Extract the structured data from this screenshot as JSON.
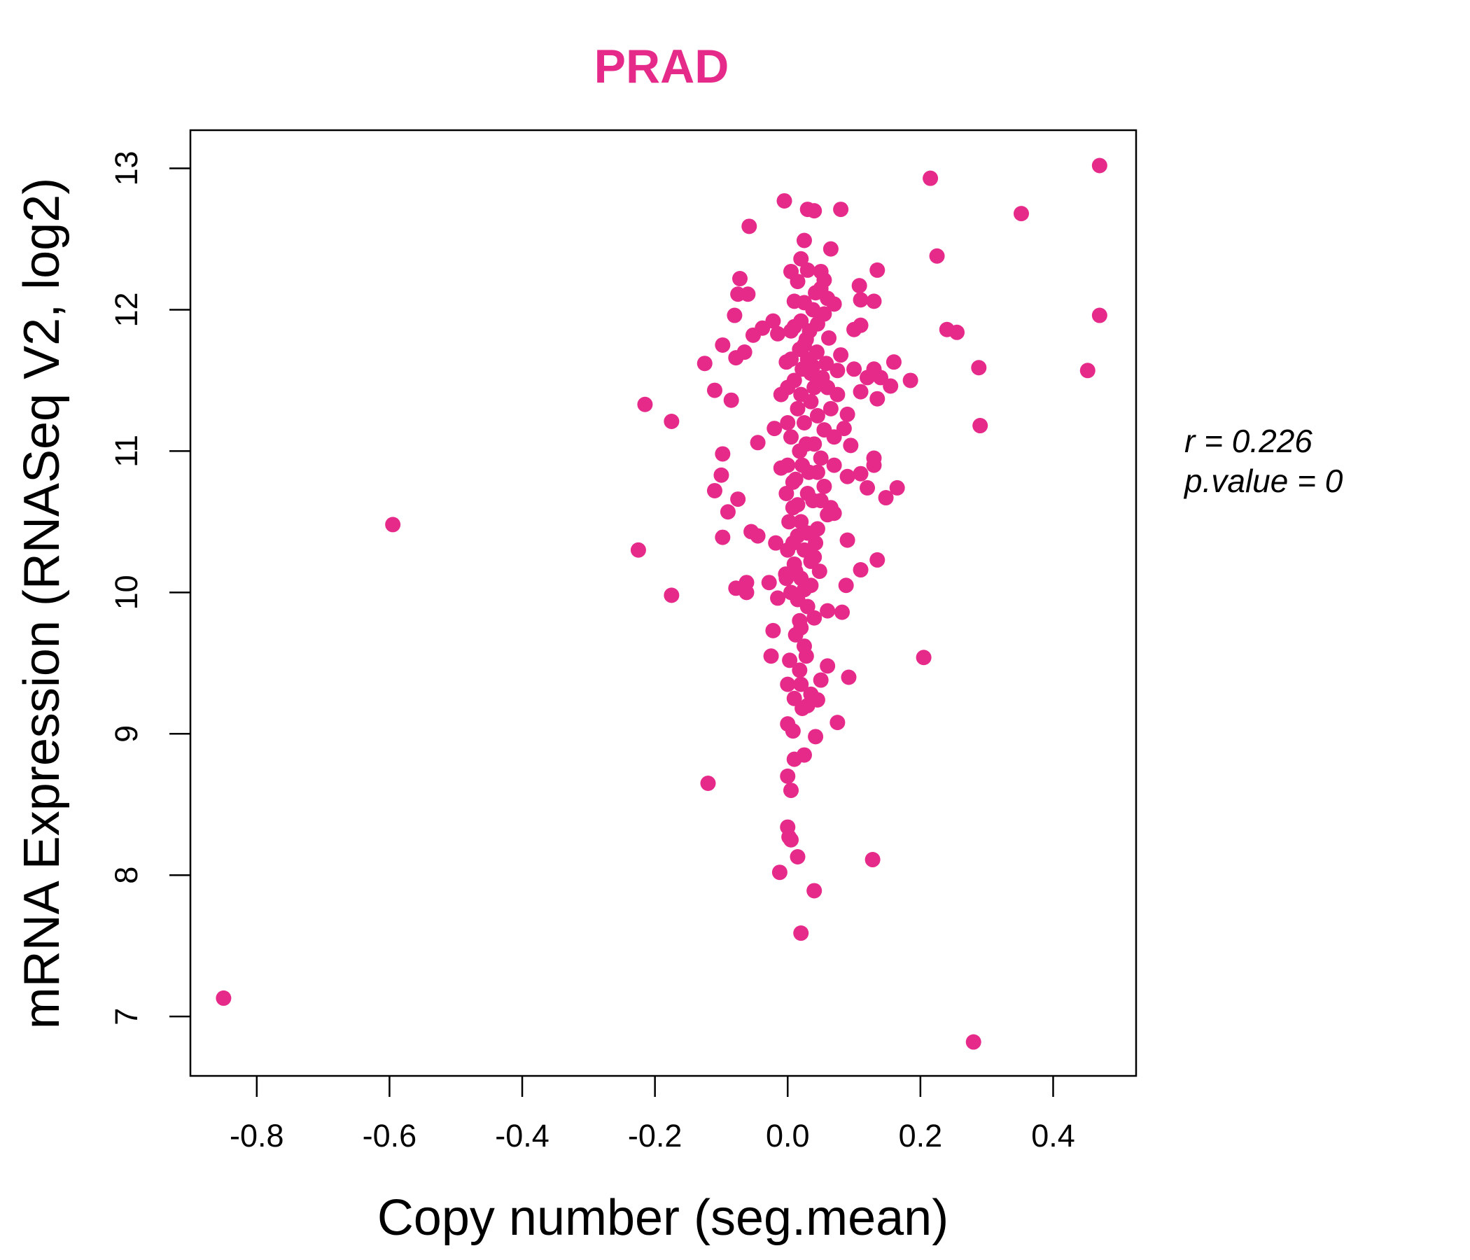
{
  "chart_data": {
    "type": "scatter",
    "title": "PRAD",
    "xlabel": "Copy number (seg.mean)",
    "ylabel": "mRNA Expression (RNASeq V2, log2)",
    "xlim": [
      -0.9,
      0.525
    ],
    "ylim": [
      6.58,
      13.27
    ],
    "x_ticks": [
      "-0.8",
      "-0.6",
      "-0.4",
      "-0.2",
      "0.0",
      "0.2",
      "0.4"
    ],
    "y_ticks": [
      "7",
      "8",
      "9",
      "10",
      "11",
      "12",
      "13"
    ],
    "grid": false,
    "legend": "none",
    "annotation": {
      "r_line": "r = 0.226",
      "p_line": "p.value = 0"
    },
    "colors": {
      "points": "#E62A8A",
      "title": "#E62A8A",
      "axes": "#000000"
    },
    "points": [
      [
        -0.85,
        7.13
      ],
      [
        -0.595,
        10.48
      ],
      [
        -0.225,
        10.3
      ],
      [
        -0.215,
        11.33
      ],
      [
        -0.175,
        11.21
      ],
      [
        -0.175,
        9.98
      ],
      [
        -0.12,
        8.65
      ],
      [
        -0.125,
        11.62
      ],
      [
        -0.11,
        11.43
      ],
      [
        -0.11,
        10.72
      ],
      [
        -0.1,
        10.83
      ],
      [
        -0.098,
        10.98
      ],
      [
        -0.098,
        11.75
      ],
      [
        -0.098,
        10.39
      ],
      [
        -0.09,
        10.57
      ],
      [
        -0.085,
        11.36
      ],
      [
        -0.08,
        11.96
      ],
      [
        -0.078,
        11.66
      ],
      [
        -0.075,
        12.11
      ],
      [
        -0.072,
        12.22
      ],
      [
        -0.075,
        10.66
      ],
      [
        -0.078,
        10.03
      ],
      [
        -0.065,
        11.7
      ],
      [
        -0.062,
        10.07
      ],
      [
        -0.062,
        10.0
      ],
      [
        -0.06,
        12.11
      ],
      [
        -0.058,
        12.59
      ],
      [
        -0.055,
        10.43
      ],
      [
        -0.052,
        11.82
      ],
      [
        -0.045,
        11.06
      ],
      [
        -0.045,
        10.4
      ],
      [
        -0.038,
        11.87
      ],
      [
        -0.028,
        10.07
      ],
      [
        -0.025,
        9.55
      ],
      [
        -0.022,
        11.92
      ],
      [
        -0.02,
        11.16
      ],
      [
        -0.022,
        9.73
      ],
      [
        -0.018,
        10.35
      ],
      [
        -0.015,
        11.83
      ],
      [
        -0.012,
        8.02
      ],
      [
        -0.015,
        9.96
      ],
      [
        -0.01,
        10.88
      ],
      [
        -0.01,
        11.4
      ],
      [
        -0.005,
        12.77
      ],
      [
        -0.003,
        10.13
      ],
      [
        -0.002,
        11.63
      ],
      [
        0.0,
        8.7
      ],
      [
        0.0,
        8.34
      ],
      [
        0.002,
        8.27
      ],
      [
        0.005,
        8.25
      ],
      [
        0.0,
        9.07
      ],
      [
        0.0,
        9.35
      ],
      [
        0.003,
        9.52
      ],
      [
        0.005,
        8.6
      ],
      [
        0.008,
        9.02
      ],
      [
        0.01,
        8.82
      ],
      [
        0.015,
        8.13
      ],
      [
        0.02,
        7.59
      ],
      [
        0.025,
        8.85
      ],
      [
        0.03,
        9.2
      ],
      [
        0.04,
        7.89
      ],
      [
        0.042,
        8.98
      ],
      [
        0.045,
        9.24
      ],
      [
        0.05,
        9.38
      ],
      [
        0.06,
        9.48
      ],
      [
        0.075,
        9.08
      ],
      [
        0.092,
        9.4
      ],
      [
        0.082,
        9.86
      ],
      [
        0.06,
        9.87
      ],
      [
        0.088,
        10.05
      ],
      [
        0.11,
        10.16
      ],
      [
        0.135,
        10.23
      ],
      [
        0.09,
        10.37
      ],
      [
        0.07,
        10.56
      ],
      [
        0.12,
        10.74
      ],
      [
        0.148,
        10.67
      ],
      [
        0.165,
        10.74
      ],
      [
        0.13,
        10.9
      ],
      [
        0.13,
        10.95
      ],
      [
        0.11,
        10.84
      ],
      [
        0.09,
        10.82
      ],
      [
        0.095,
        11.04
      ],
      [
        0.085,
        11.16
      ],
      [
        0.09,
        11.26
      ],
      [
        0.135,
        11.37
      ],
      [
        0.11,
        11.42
      ],
      [
        0.12,
        11.52
      ],
      [
        0.14,
        11.52
      ],
      [
        0.13,
        11.58
      ],
      [
        0.155,
        11.46
      ],
      [
        0.16,
        11.63
      ],
      [
        0.185,
        11.5
      ],
      [
        0.1,
        11.58
      ],
      [
        0.08,
        11.68
      ],
      [
        0.075,
        11.57
      ],
      [
        0.1,
        11.86
      ],
      [
        0.11,
        11.89
      ],
      [
        0.11,
        12.07
      ],
      [
        0.13,
        12.06
      ],
      [
        0.108,
        12.17
      ],
      [
        0.135,
        12.28
      ],
      [
        0.065,
        12.43
      ],
      [
        0.08,
        12.71
      ],
      [
        0.025,
        12.49
      ],
      [
        0.03,
        12.71
      ],
      [
        0.04,
        12.7
      ],
      [
        0.05,
        12.27
      ],
      [
        0.055,
        12.21
      ],
      [
        0.06,
        12.08
      ],
      [
        0.05,
        12.15
      ],
      [
        0.07,
        12.04
      ],
      [
        0.055,
        11.97
      ],
      [
        0.03,
        12.28
      ],
      [
        0.02,
        12.36
      ],
      [
        0.005,
        12.27
      ],
      [
        0.015,
        12.2
      ],
      [
        0.01,
        12.06
      ],
      [
        0.02,
        11.92
      ],
      [
        0.005,
        11.85
      ],
      [
        0.028,
        11.79
      ],
      [
        0.215,
        12.93
      ],
      [
        0.225,
        12.38
      ],
      [
        0.24,
        11.86
      ],
      [
        0.255,
        11.84
      ],
      [
        0.288,
        11.59
      ],
      [
        0.29,
        11.18
      ],
      [
        0.352,
        12.68
      ],
      [
        0.47,
        13.02
      ],
      [
        0.47,
        11.96
      ],
      [
        0.452,
        11.57
      ],
      [
        0.205,
        9.54
      ],
      [
        0.128,
        8.11
      ],
      [
        0.28,
        6.82
      ],
      [
        0.01,
        11.5
      ],
      [
        0.02,
        11.4
      ],
      [
        0.015,
        11.3
      ],
      [
        0.025,
        11.2
      ],
      [
        0.005,
        11.1
      ],
      [
        0.018,
        11.0
      ],
      [
        0.022,
        10.9
      ],
      [
        0.012,
        10.8
      ],
      [
        0.03,
        10.7
      ],
      [
        0.008,
        10.6
      ],
      [
        0.02,
        10.5
      ],
      [
        0.015,
        10.4
      ],
      [
        0.025,
        10.3
      ],
      [
        0.01,
        10.2
      ],
      [
        0.02,
        10.1
      ],
      [
        0.005,
        10.0
      ],
      [
        0.03,
        9.9
      ],
      [
        0.018,
        9.8
      ],
      [
        0.012,
        9.7
      ],
      [
        0.025,
        9.62
      ],
      [
        0.035,
        11.55
      ],
      [
        0.04,
        11.45
      ],
      [
        0.045,
        11.25
      ],
      [
        0.04,
        11.05
      ],
      [
        0.05,
        10.95
      ],
      [
        0.045,
        10.85
      ],
      [
        0.05,
        10.65
      ],
      [
        0.045,
        10.45
      ],
      [
        0.04,
        10.25
      ],
      [
        0.035,
        10.05
      ],
      [
        0.03,
        11.65
      ],
      [
        0.025,
        11.75
      ],
      [
        0.035,
        11.35
      ],
      [
        0.055,
        11.15
      ],
      [
        0.06,
        10.55
      ],
      [
        0.055,
        10.75
      ],
      [
        0.06,
        11.45
      ],
      [
        0.065,
        11.3
      ],
      [
        0.07,
        11.1
      ],
      [
        0.07,
        10.9
      ],
      [
        0.065,
        10.6
      ],
      [
        0.075,
        11.4
      ],
      [
        0.0,
        11.2
      ],
      [
        0.0,
        10.9
      ],
      [
        -0.002,
        10.7
      ],
      [
        0.002,
        10.5
      ],
      [
        0.0,
        10.3
      ],
      [
        -0.002,
        10.1
      ],
      [
        0.0,
        11.45
      ],
      [
        0.005,
        11.65
      ],
      [
        0.008,
        10.35
      ],
      [
        0.012,
        10.15
      ],
      [
        0.015,
        9.95
      ],
      [
        0.02,
        9.75
      ],
      [
        0.028,
        9.55
      ],
      [
        0.018,
        9.45
      ],
      [
        0.032,
        10.85
      ],
      [
        0.038,
        10.65
      ],
      [
        0.042,
        10.35
      ],
      [
        0.048,
        10.15
      ],
      [
        0.028,
        11.05
      ],
      [
        0.033,
        11.85
      ],
      [
        0.038,
        11.6
      ],
      [
        0.044,
        11.7
      ],
      [
        0.052,
        11.52
      ],
      [
        0.058,
        11.62
      ],
      [
        0.062,
        11.8
      ],
      [
        0.045,
        11.9
      ],
      [
        0.038,
        12.0
      ],
      [
        0.042,
        12.12
      ],
      [
        0.025,
        12.05
      ],
      [
        0.018,
        11.72
      ],
      [
        0.01,
        11.88
      ],
      [
        0.022,
        11.58
      ],
      [
        0.015,
        10.62
      ],
      [
        0.008,
        10.78
      ],
      [
        0.03,
        10.42
      ],
      [
        0.035,
        10.22
      ],
      [
        0.025,
        10.02
      ],
      [
        0.04,
        9.82
      ],
      [
        0.02,
        9.35
      ],
      [
        0.01,
        9.25
      ],
      [
        0.035,
        9.28
      ],
      [
        0.022,
        9.18
      ]
    ]
  }
}
